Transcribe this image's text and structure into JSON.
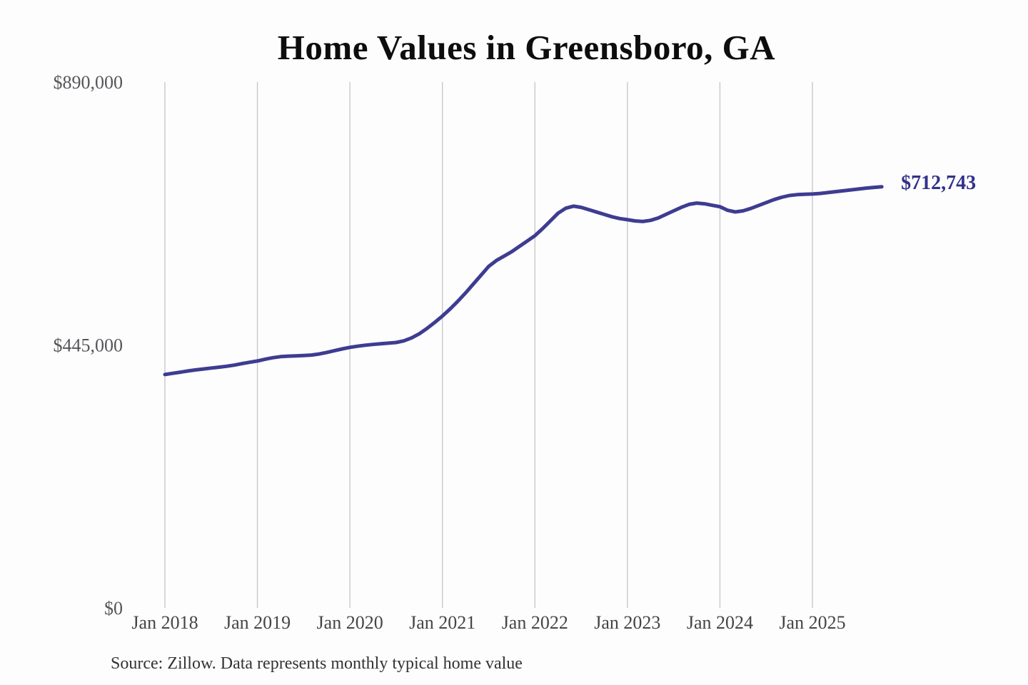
{
  "title": "Home Values in Greensboro, GA",
  "source_note": "Source: Zillow. Data represents monthly typical home value",
  "colors": {
    "line": "#3e3c91",
    "latest_value_label": "#32318b",
    "gridline": "#c9c9c9",
    "title": "#0d0d0d",
    "y_tick_label": "#55565a",
    "x_tick_label": "#454545",
    "source_text": "#333333",
    "background": "#fdfdfd"
  },
  "chart_data": {
    "type": "line",
    "title": "Home Values in Greensboro, GA",
    "xlabel": "",
    "ylabel": "",
    "grid": "vertical-only",
    "legend": "none",
    "ylim": [
      0,
      890000
    ],
    "y_tick_values": [
      0,
      445000,
      890000
    ],
    "y_tick_labels": [
      "$0",
      "$445,000",
      "$890,000"
    ],
    "x_tick_labels": [
      "Jan 2018",
      "Jan 2019",
      "Jan 2020",
      "Jan 2021",
      "Jan 2022",
      "Jan 2023",
      "Jan 2024",
      "Jan 2025"
    ],
    "x_tick_indices": [
      0,
      12,
      24,
      36,
      48,
      60,
      72,
      84
    ],
    "frequency": "monthly",
    "start_month": "Jan 2018",
    "end_month": "Oct 2025",
    "series_name": "Typical home value",
    "values": [
      395000,
      397000,
      399000,
      401000,
      402800,
      404400,
      406000,
      407500,
      409000,
      411000,
      413500,
      415800,
      418000,
      421000,
      423500,
      425300,
      426200,
      426700,
      427200,
      428000,
      429800,
      432500,
      435500,
      438300,
      441000,
      443000,
      444600,
      446000,
      447200,
      448200,
      449200,
      452000,
      457000,
      464000,
      473000,
      483200,
      494000,
      506000,
      519000,
      533000,
      548000,
      563000,
      578000,
      588000,
      595500,
      603000,
      612000,
      621000,
      630000,
      642000,
      655000,
      668000,
      676500,
      680000,
      678000,
      674000,
      670000,
      666000,
      662000,
      659000,
      657000,
      655000,
      654000,
      656000,
      660000,
      666000,
      672000,
      678000,
      683000,
      685200,
      684000,
      681500,
      679000,
      673000,
      670200,
      672000,
      676000,
      681000,
      686000,
      691000,
      695000,
      698000,
      699500,
      700000,
      700500,
      701500,
      703000,
      704500,
      706000,
      707500,
      709000,
      710500,
      711800,
      712743
    ],
    "final_value": 712743,
    "final_value_label": "$712,743"
  }
}
